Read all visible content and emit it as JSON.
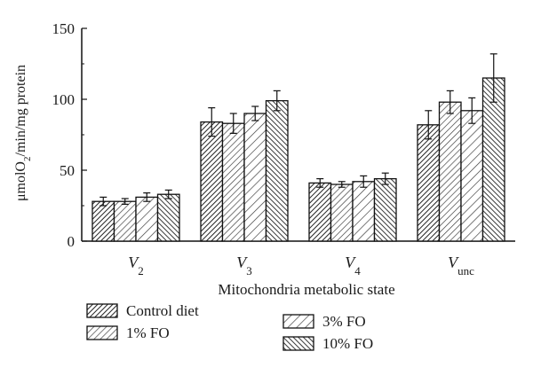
{
  "chart_data": {
    "type": "bar",
    "categories": [
      "V2",
      "V3",
      "V4",
      "Vunc"
    ],
    "category_labels": [
      {
        "main": "V",
        "sub": "2"
      },
      {
        "main": "V",
        "sub": "3"
      },
      {
        "main": "V",
        "sub": "4"
      },
      {
        "main": "V",
        "sub": "unc"
      }
    ],
    "series": [
      {
        "name": "Control diet",
        "values": [
          28,
          84,
          41,
          82
        ],
        "errors": [
          3,
          10,
          3,
          10
        ],
        "pattern": "diag-dense"
      },
      {
        "name": "1% FO",
        "values": [
          28,
          83,
          40,
          98
        ],
        "errors": [
          2,
          7,
          2,
          8
        ],
        "pattern": "diag-light"
      },
      {
        "name": "3% FO",
        "values": [
          31,
          90,
          42,
          92
        ],
        "errors": [
          3,
          5,
          4,
          9
        ],
        "pattern": "diag-sparse"
      },
      {
        "name": "10% FO",
        "values": [
          33,
          99,
          44,
          115
        ],
        "errors": [
          3,
          7,
          4,
          17
        ],
        "pattern": "anti-dense"
      }
    ],
    "title": "",
    "xlabel": "Mitochondria metabolic state",
    "ylabel": {
      "pre": "μmolO",
      "sub": "2",
      "post": "/min/mg protein"
    },
    "ylim": [
      0,
      150
    ],
    "yticks": [
      0,
      50,
      100,
      150
    ],
    "grid": false,
    "legend_placement": "bottom"
  }
}
